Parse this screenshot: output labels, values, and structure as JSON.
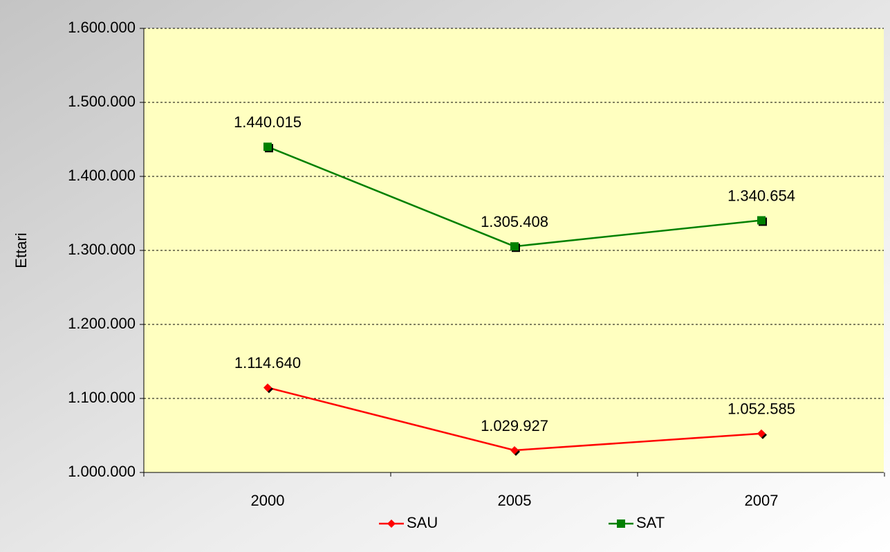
{
  "chart_data": {
    "type": "line",
    "y_label": "Ettari",
    "categories": [
      "2000",
      "2005",
      "2007"
    ],
    "series": [
      {
        "name": "SAU",
        "color": "#ff0000",
        "marker": "diamond",
        "values": [
          1114640,
          1029927,
          1052585
        ],
        "value_labels": [
          "1.114.640",
          "1.029.927",
          "1.052.585"
        ]
      },
      {
        "name": "SAT",
        "color": "#008000",
        "marker": "square",
        "values": [
          1440015,
          1305408,
          1340654
        ],
        "value_labels": [
          "1.440.015",
          "1.305.408",
          "1.340.654"
        ]
      }
    ],
    "ylim": [
      1000000,
      1600000
    ],
    "yticks": [
      {
        "value": 1000000,
        "label": "1.000.000"
      },
      {
        "value": 1100000,
        "label": "1.100.000"
      },
      {
        "value": 1200000,
        "label": "1.200.000"
      },
      {
        "value": 1300000,
        "label": "1.300.000"
      },
      {
        "value": 1400000,
        "label": "1.400.000"
      },
      {
        "value": 1500000,
        "label": "1.500.000"
      },
      {
        "value": 1600000,
        "label": "1.600.000"
      }
    ],
    "grid": true,
    "plot_background": "#ffffc0",
    "legend": "bottom"
  }
}
